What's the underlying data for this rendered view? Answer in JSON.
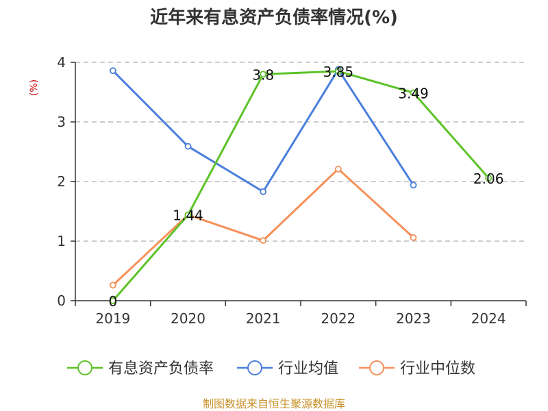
{
  "chart_data": {
    "type": "line",
    "title": "近年来有息资产负债率情况(%)",
    "ylabel": "(%)",
    "xlabel": "",
    "categories": [
      "2019",
      "2020",
      "2021",
      "2022",
      "2023",
      "2024"
    ],
    "ylim": [
      0,
      4
    ],
    "yticks": [
      "0",
      "1",
      "2",
      "3",
      "4"
    ],
    "grid": true,
    "legend_position": "bottom",
    "series": [
      {
        "name": "有息资产负债率",
        "color": "#5cc227",
        "values": [
          0,
          1.44,
          3.8,
          3.85,
          3.49,
          2.06
        ],
        "labels": [
          "0",
          "1.44",
          "3.8",
          "3.85",
          "3.49",
          "2.06"
        ],
        "show_labels": true
      },
      {
        "name": "行业均值",
        "color": "#4a7fdc",
        "values": [
          3.86,
          2.59,
          1.83,
          3.88,
          1.94,
          null
        ],
        "show_labels": false
      },
      {
        "name": "行业中位数",
        "color": "#f7905a",
        "values": [
          0.26,
          1.44,
          1.01,
          2.21,
          1.06,
          null
        ],
        "show_labels": false
      }
    ]
  },
  "source": "制图数据来自恒生聚源数据库"
}
